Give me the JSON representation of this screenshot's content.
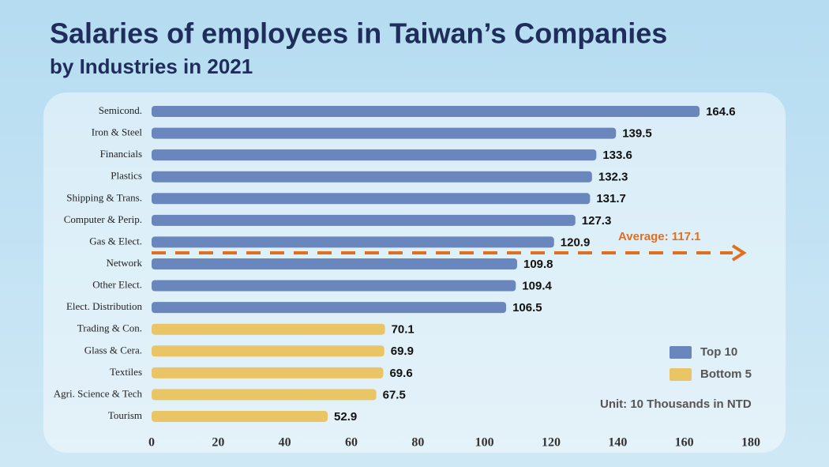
{
  "chart_data": {
    "type": "bar",
    "orientation": "horizontal",
    "title": "Salaries of employees in Taiwan’s Companies",
    "subtitle": "by Industries in 2021",
    "categories": [
      "Semicond.",
      "Iron & Steel",
      "Financials",
      "Plastics",
      "Shipping & Trans.",
      "Computer & Perip.",
      "Gas & Elect.",
      "Network",
      "Other Elect.",
      "Elect. Distribution",
      "Trading & Con.",
      "Glass & Cera.",
      "Textiles",
      "Agri. Science & Tech",
      "Tourism"
    ],
    "series": [
      {
        "name": "Top 10",
        "color": "#6a87bd",
        "values": [
          164.6,
          139.5,
          133.6,
          132.3,
          131.7,
          127.3,
          120.9,
          109.8,
          109.4,
          106.5,
          null,
          null,
          null,
          null,
          null
        ]
      },
      {
        "name": "Bottom 5",
        "color": "#e9c565",
        "values": [
          null,
          null,
          null,
          null,
          null,
          null,
          null,
          null,
          null,
          null,
          70.1,
          69.9,
          69.6,
          67.5,
          52.9
        ]
      }
    ],
    "xlim": [
      0,
      180
    ],
    "xticks": [
      0,
      20,
      40,
      60,
      80,
      100,
      120,
      140,
      160,
      180
    ],
    "annotations": [
      "Average: 117.1",
      "Unit: 10 Thousands in NTD"
    ],
    "legend": "lower right",
    "grid": false
  }
}
